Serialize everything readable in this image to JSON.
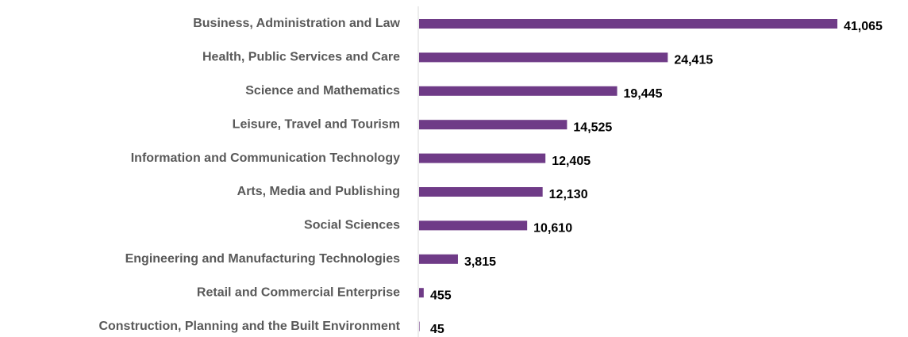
{
  "chart_data": {
    "type": "bar",
    "orientation": "horizontal",
    "color": "#6f3b87",
    "categories": [
      "Business, Administration and Law",
      "Health, Public Services and Care",
      "Science and Mathematics",
      "Leisure, Travel and Tourism",
      "Information and Communication Technology",
      "Arts, Media and Publishing",
      "Social Sciences",
      "Engineering and Manufacturing Technologies",
      "Retail and Commercial Enterprise",
      "Construction, Planning and the Built Environment"
    ],
    "values": [
      41065,
      24415,
      19445,
      14525,
      12405,
      12130,
      10610,
      3815,
      455,
      45
    ],
    "value_labels": [
      "41,065",
      "24,415",
      "19,445",
      "14,525",
      "12,405",
      "12,130",
      "10,610",
      "3,815",
      "455",
      "45"
    ]
  }
}
